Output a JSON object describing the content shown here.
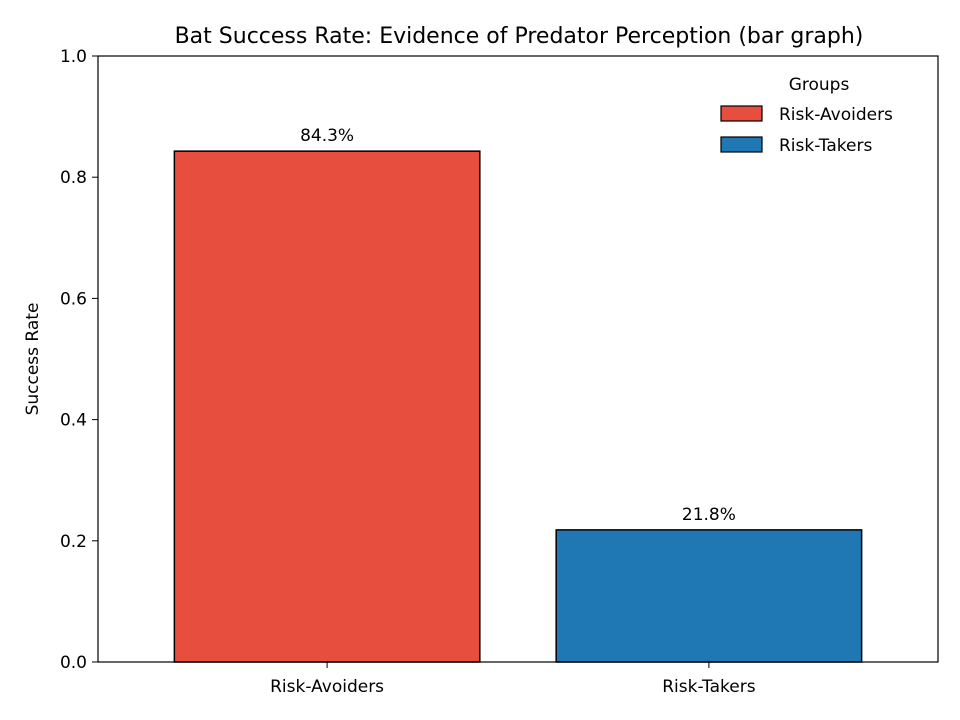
{
  "chart_data": {
    "type": "bar",
    "title": "Bat Success Rate: Evidence of Predator Perception (bar graph)",
    "xlabel": "",
    "ylabel": "Success Rate",
    "categories": [
      "Risk-Avoiders",
      "Risk-Takers"
    ],
    "values": [
      0.843,
      0.218
    ],
    "data_labels": [
      "84.3%",
      "21.8%"
    ],
    "colors": [
      "#e84e3e",
      "#1f77b4"
    ],
    "ylim": [
      0,
      1.0
    ],
    "yticks": [
      0.0,
      0.2,
      0.4,
      0.6,
      0.8,
      1.0
    ],
    "ytick_labels": [
      "0.0",
      "0.2",
      "0.4",
      "0.6",
      "0.8",
      "1.0"
    ],
    "grid": false,
    "legend": {
      "title": "Groups",
      "placement": "top-right",
      "entries": [
        {
          "label": "Risk-Avoiders",
          "color": "#e84e3e"
        },
        {
          "label": "Risk-Takers",
          "color": "#1f77b4"
        }
      ]
    }
  }
}
